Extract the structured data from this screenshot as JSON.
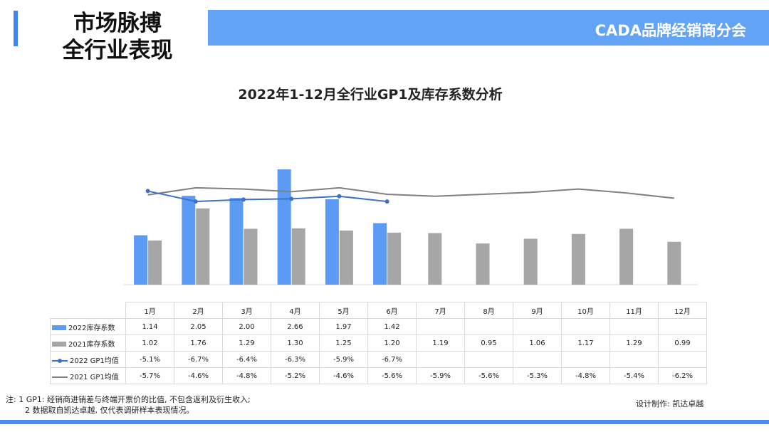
{
  "header": {
    "title_line1": "市场脉搏",
    "title_line2": "全行业表现",
    "org": "CADA品牌经销商分会"
  },
  "colors": {
    "accent": "#3e82f7",
    "band": "#63a3f5",
    "series_2022_bar": "#5b9bf5",
    "series_2021_bar": "#a6a6a6",
    "series_2022_line": "#3f72c6",
    "series_2021_line": "#808080"
  },
  "chart_data": {
    "type": "bar+line",
    "title": "2022年1-12月全行业GP1及库存系数分析",
    "categories": [
      "1月",
      "2月",
      "3月",
      "4月",
      "5月",
      "6月",
      "7月",
      "8月",
      "9月",
      "10月",
      "11月",
      "12月"
    ],
    "series": [
      {
        "name": "2022库存系数",
        "kind": "bar",
        "values": [
          1.14,
          2.05,
          2.0,
          2.66,
          1.97,
          1.42,
          null,
          null,
          null,
          null,
          null,
          null
        ],
        "labels": [
          "1.14",
          "2.05",
          "2.00",
          "2.66",
          "1.97",
          "1.42",
          "",
          "",
          "",
          "",
          "",
          ""
        ]
      },
      {
        "name": "2021库存系数",
        "kind": "bar",
        "values": [
          1.02,
          1.76,
          1.29,
          1.3,
          1.25,
          1.2,
          1.19,
          0.95,
          1.06,
          1.17,
          1.29,
          0.99
        ],
        "labels": [
          "1.02",
          "1.76",
          "1.29",
          "1.30",
          "1.25",
          "1.20",
          "1.19",
          "0.95",
          "1.06",
          "1.17",
          "1.29",
          "0.99"
        ]
      },
      {
        "name": "2022 GP1均值",
        "kind": "line",
        "values": [
          -5.1,
          -6.7,
          -6.4,
          -6.3,
          -5.9,
          -6.7,
          null,
          null,
          null,
          null,
          null,
          null
        ],
        "labels": [
          "-5.1%",
          "-6.7%",
          "-6.4%",
          "-6.3%",
          "-5.9%",
          "-6.7%",
          "",
          "",
          "",
          "",
          "",
          ""
        ]
      },
      {
        "name": "2021 GP1均值",
        "kind": "line",
        "values": [
          -5.7,
          -4.6,
          -4.8,
          -5.2,
          -4.6,
          -5.6,
          -5.9,
          -5.6,
          -5.3,
          -4.8,
          -5.4,
          -6.2
        ],
        "labels": [
          "-5.7%",
          "-4.6%",
          "-4.8%",
          "-5.2%",
          "-4.6%",
          "-5.6%",
          "-5.9%",
          "-5.6%",
          "-5.3%",
          "-4.8%",
          "-5.4%",
          "-6.2%"
        ]
      }
    ],
    "ylim_bar": [
      0,
      2.7
    ],
    "ylim_line_pct": [
      -14,
      -2
    ],
    "legend": "data-table"
  },
  "footnote": {
    "line1": "注: 1 GP1: 经销商进销差与终端开票价的比值, 不包含返利及衍生收入;",
    "line2": "2 数据取自凯达卓越, 仅代表调研样本表现情况。"
  },
  "credit": "设计制作: 凯达卓越"
}
